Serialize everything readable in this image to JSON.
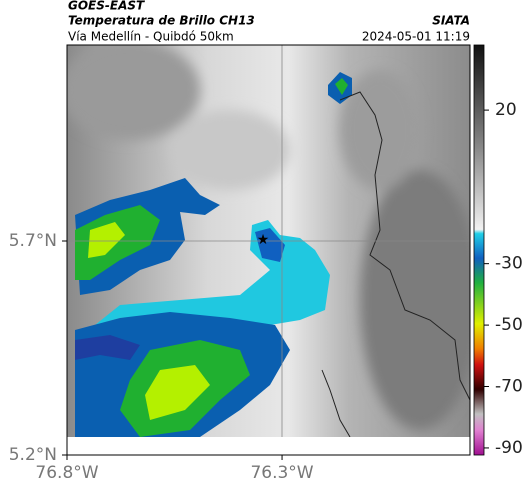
{
  "header": {
    "source": "GOES-EAST",
    "title": "Temperatura de Brillo CH13",
    "subtitle": "Vía Medellín - Quibdó 50km",
    "org": "SIATA",
    "datetime": "2024-05-01 11:19"
  },
  "map": {
    "lonlim": [
      -76.8,
      -75.863
    ],
    "latlim": [
      5.2,
      6.158
    ],
    "xticks": [
      {
        "value": -76.8,
        "label": "76.8°W"
      },
      {
        "value": -76.3,
        "label": "76.3°W"
      }
    ],
    "yticks": [
      {
        "value": 5.2,
        "label": "5.2°N"
      },
      {
        "value": 5.7,
        "label": "5.7°N"
      }
    ]
  },
  "colorbar": {
    "lim": [
      -92.3,
      41.2
    ],
    "ticks": [
      20,
      -30,
      -50,
      -70,
      -90
    ]
  }
}
